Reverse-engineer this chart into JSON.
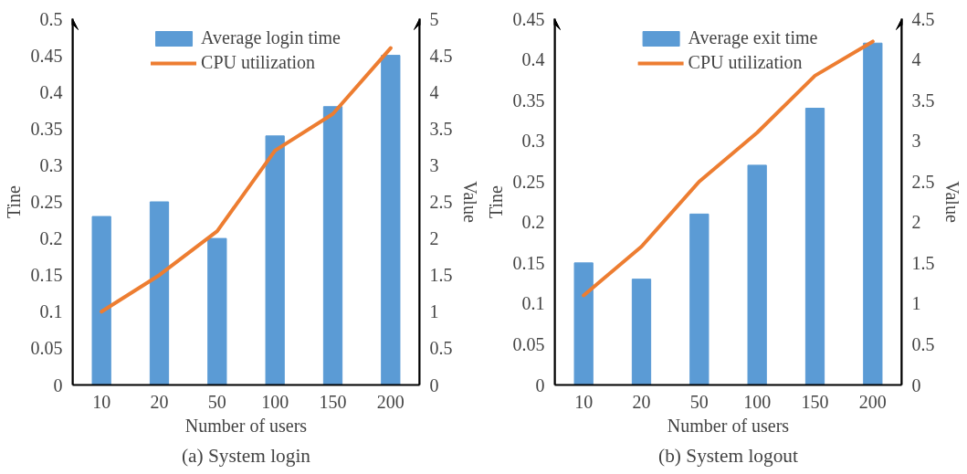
{
  "chart_data": [
    {
      "type": "bar",
      "categories": [
        "10",
        "20",
        "50",
        "100",
        "150",
        "200"
      ],
      "xlabel": "Number of users",
      "ylabel": "Tine",
      "y2label": "Value",
      "series": [
        {
          "name": "Average login time",
          "color": "#5b9bd5",
          "values": [
            0.23,
            0.25,
            0.2,
            0.34,
            0.38,
            0.45
          ]
        },
        {
          "name": "CPU utilization",
          "type": "line",
          "axis": "y2",
          "color": "#ed7d31",
          "values": [
            1.0,
            1.5,
            2.1,
            3.2,
            3.7,
            4.6
          ]
        }
      ],
      "ylim": [
        0,
        0.5
      ],
      "yticks": [
        0,
        0.05,
        0.1,
        0.15,
        0.2,
        0.25,
        0.3,
        0.35,
        0.4,
        0.45,
        0.5
      ],
      "y2lim": [
        0,
        5
      ],
      "y2ticks": [
        0,
        0.5,
        1,
        1.5,
        2,
        2.5,
        3,
        3.5,
        4,
        4.5,
        5
      ],
      "grid": false,
      "legend": "top",
      "annotations": [
        "(a) System login"
      ]
    },
    {
      "type": "bar",
      "categories": [
        "10",
        "20",
        "50",
        "100",
        "150",
        "200"
      ],
      "xlabel": "Number of users",
      "ylabel": "Tine",
      "y2label": "Value",
      "series": [
        {
          "name": "Average exit time",
          "color": "#5b9bd5",
          "values": [
            0.15,
            0.13,
            0.21,
            0.27,
            0.34,
            0.42
          ]
        },
        {
          "name": "CPU utilization",
          "type": "line",
          "axis": "y2",
          "color": "#ed7d31",
          "values": [
            1.1,
            1.7,
            2.5,
            3.1,
            3.8,
            4.22
          ]
        }
      ],
      "ylim": [
        0,
        0.45
      ],
      "yticks": [
        0,
        0.05,
        0.1,
        0.15,
        0.2,
        0.25,
        0.3,
        0.35,
        0.4,
        0.45
      ],
      "y2lim": [
        0,
        4.5
      ],
      "y2ticks": [
        0,
        0.5,
        1,
        1.5,
        2,
        2.5,
        3,
        3.5,
        4,
        4.5
      ],
      "grid": false,
      "legend": "top",
      "annotations": [
        "(b) System logout"
      ]
    }
  ]
}
